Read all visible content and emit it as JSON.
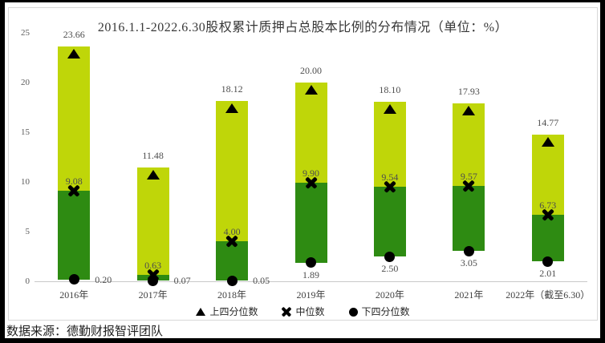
{
  "chart": {
    "title": "2016.1.1-2022.6.30股权累计质押占总股本比例的分布情况（单位：%）",
    "source": "数据来源：德勤财报智评团队",
    "legend": [
      {
        "marker": "triangle",
        "label": "上四分位数"
      },
      {
        "marker": "x",
        "label": "中位数"
      },
      {
        "marker": "dot",
        "label": "下四分位数"
      }
    ],
    "colors": {
      "upper_segment": "#bfd609",
      "lower_segment": "#2e8b12",
      "marker": "#000000",
      "axis_line": "#c9c9c9",
      "border": "#d8d8d8",
      "label_text": "#4d4d4d",
      "frame": "#000000"
    }
  },
  "chart_data": {
    "type": "bar",
    "subtype": "floating-stacked-quartile-columns",
    "title": "2016.1.1-2022.6.30股权累计质押占总股本比例的分布情况（单位：%）",
    "categories": [
      "2016年",
      "2017年",
      "2018年",
      "2019年",
      "2020年",
      "2021年",
      "2022年（截至6.30）"
    ],
    "series": [
      {
        "name": "上四分位数",
        "marker": "triangle",
        "values": [
          23.66,
          11.48,
          18.12,
          20.0,
          18.1,
          17.93,
          14.77
        ]
      },
      {
        "name": "中位数",
        "marker": "x",
        "values": [
          9.08,
          0.63,
          4.0,
          9.9,
          9.54,
          9.57,
          6.73
        ]
      },
      {
        "name": "下四分位数",
        "marker": "dot",
        "values": [
          0.2,
          0.07,
          0.05,
          1.89,
          2.5,
          3.05,
          2.01
        ]
      }
    ],
    "bar_fill_between": "dark green from lower quartile to median, yellow-green from median to upper quartile",
    "lower_label_placement": [
      "right",
      "right",
      "right",
      "below",
      "below",
      "below",
      "below"
    ],
    "value_label_decimals": 2,
    "xlabel": "",
    "ylabel": "",
    "ylim": [
      0,
      25
    ],
    "yticks": [
      0,
      5,
      10,
      15,
      20,
      25
    ],
    "grid": false,
    "legend_position": "bottom"
  }
}
